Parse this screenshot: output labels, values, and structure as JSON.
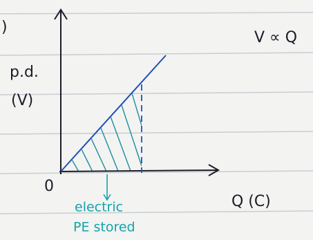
{
  "bracket": ")",
  "relation": "V ∝ Q",
  "axes": {
    "y_label": [
      "p.d.",
      "(V)"
    ],
    "origin": "0",
    "x_label": "Q (C)"
  },
  "annotation": [
    "electric",
    "PE stored"
  ]
}
